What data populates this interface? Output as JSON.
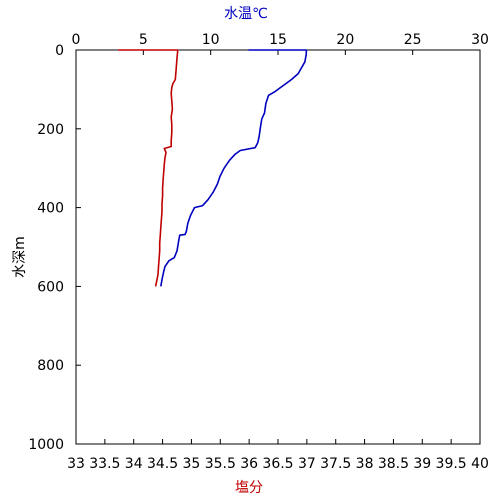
{
  "chart_data": {
    "type": "line",
    "top_axis": {
      "label": "水温℃",
      "label_color": "#0000c0",
      "range": [
        0,
        30
      ],
      "ticks": [
        "0",
        "5",
        "10",
        "15",
        "20",
        "25",
        "30"
      ],
      "tick_values": [
        0,
        5,
        10,
        15,
        20,
        25,
        30
      ]
    },
    "bottom_axis": {
      "label": "塩分",
      "label_color": "#c00000",
      "range": [
        33,
        40
      ],
      "ticks": [
        "33",
        "33.5",
        "34",
        "34.5",
        "35",
        "35.5",
        "36",
        "36.5",
        "37",
        "37.5",
        "38",
        "38.5",
        "39",
        "39.5",
        "40"
      ],
      "tick_values": [
        33,
        33.5,
        34,
        34.5,
        35,
        35.5,
        36,
        36.5,
        37,
        37.5,
        38,
        38.5,
        39,
        39.5,
        40
      ]
    },
    "y_axis": {
      "label": "水深m",
      "range": [
        0,
        1000
      ],
      "inverted": true,
      "ticks": [
        "0",
        "200",
        "400",
        "600",
        "800",
        "1000"
      ],
      "tick_values": [
        0,
        200,
        400,
        600,
        800,
        1000
      ]
    },
    "grid": false,
    "series": [
      {
        "axis": "top",
        "color": "#0000c0",
        "points": [
          [
            12.8,
            0
          ],
          [
            17.1,
            0
          ],
          [
            17.1,
            10
          ],
          [
            17.0,
            30
          ],
          [
            16.5,
            60
          ],
          [
            16.0,
            75
          ],
          [
            15.6,
            85
          ],
          [
            15.2,
            95
          ],
          [
            14.8,
            105
          ],
          [
            14.3,
            115
          ],
          [
            14.1,
            135
          ],
          [
            14.0,
            160
          ],
          [
            13.8,
            175
          ],
          [
            13.7,
            195
          ],
          [
            13.6,
            220
          ],
          [
            13.5,
            235
          ],
          [
            13.3,
            248
          ],
          [
            12.2,
            255
          ],
          [
            11.8,
            265
          ],
          [
            11.4,
            280
          ],
          [
            11.0,
            300
          ],
          [
            10.7,
            320
          ],
          [
            10.5,
            340
          ],
          [
            10.2,
            360
          ],
          [
            9.8,
            380
          ],
          [
            9.4,
            395
          ],
          [
            8.8,
            400
          ],
          [
            8.5,
            420
          ],
          [
            8.3,
            440
          ],
          [
            8.2,
            460
          ],
          [
            8.1,
            468
          ],
          [
            7.7,
            470
          ],
          [
            7.6,
            490
          ],
          [
            7.5,
            510
          ],
          [
            7.3,
            527
          ],
          [
            6.9,
            535
          ],
          [
            6.6,
            550
          ],
          [
            6.5,
            565
          ],
          [
            6.4,
            580
          ],
          [
            6.3,
            600
          ]
        ]
      },
      {
        "axis": "bottom",
        "color": "#c00000",
        "points": [
          [
            33.73,
            0
          ],
          [
            34.76,
            0
          ],
          [
            34.76,
            5
          ],
          [
            34.75,
            20
          ],
          [
            34.74,
            40
          ],
          [
            34.73,
            60
          ],
          [
            34.72,
            75
          ],
          [
            34.68,
            85
          ],
          [
            34.66,
            95
          ],
          [
            34.65,
            110
          ],
          [
            34.66,
            130
          ],
          [
            34.67,
            150
          ],
          [
            34.65,
            170
          ],
          [
            34.66,
            190
          ],
          [
            34.66,
            210
          ],
          [
            34.65,
            230
          ],
          [
            34.65,
            245
          ],
          [
            34.53,
            250
          ],
          [
            34.56,
            260
          ],
          [
            34.54,
            275
          ],
          [
            34.53,
            290
          ],
          [
            34.52,
            310
          ],
          [
            34.51,
            330
          ],
          [
            34.5,
            350
          ],
          [
            34.5,
            370
          ],
          [
            34.49,
            390
          ],
          [
            34.49,
            410
          ],
          [
            34.48,
            430
          ],
          [
            34.47,
            450
          ],
          [
            34.46,
            470
          ],
          [
            34.45,
            490
          ],
          [
            34.45,
            510
          ],
          [
            34.44,
            530
          ],
          [
            34.43,
            550
          ],
          [
            34.42,
            570
          ],
          [
            34.4,
            585
          ],
          [
            34.38,
            600
          ]
        ]
      }
    ]
  }
}
